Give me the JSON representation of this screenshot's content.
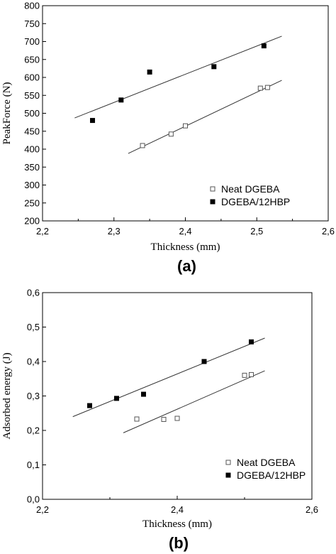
{
  "chart_data": [
    {
      "type": "scatter",
      "panel_label": "(a)",
      "xlabel": "Thickness (mm)",
      "ylabel": "PeakForce (N)",
      "xlim": [
        2.2,
        2.6
      ],
      "ylim": [
        200,
        800
      ],
      "x_ticks": [
        2.2,
        2.3,
        2.4,
        2.5,
        2.6
      ],
      "y_ticks": [
        200,
        250,
        300,
        350,
        400,
        450,
        500,
        550,
        600,
        650,
        700,
        750,
        800
      ],
      "x_tick_labels": [
        "2,2",
        "2,3",
        "2,4",
        "2,5",
        "2,6"
      ],
      "y_tick_labels": [
        "200",
        "250",
        "300",
        "350",
        "400",
        "450",
        "500",
        "550",
        "600",
        "650",
        "700",
        "750",
        "800"
      ],
      "grid": false,
      "legend_position": "bottom-right",
      "series": [
        {
          "name": "Neat DGEBA",
          "marker": "open-square",
          "x": [
            2.34,
            2.38,
            2.4,
            2.505,
            2.515
          ],
          "y": [
            410,
            442,
            465,
            570,
            572
          ],
          "fit": {
            "x": [
              2.32,
              2.535
            ],
            "y": [
              388,
              592
            ]
          }
        },
        {
          "name": "DGEBA/12HBP",
          "marker": "filled-square",
          "x": [
            2.27,
            2.31,
            2.35,
            2.44,
            2.51
          ],
          "y": [
            480,
            537,
            615,
            630,
            688
          ],
          "fit": {
            "x": [
              2.245,
              2.535
            ],
            "y": [
              487,
              715
            ]
          }
        }
      ]
    },
    {
      "type": "scatter",
      "panel_label": "(b)",
      "xlabel": "Thickness (mm)",
      "ylabel": "Adsorbed energy (J)",
      "xlim": [
        2.2,
        2.6
      ],
      "ylim": [
        0.0,
        0.6
      ],
      "x_ticks": [
        2.2,
        2.4,
        2.6
      ],
      "y_ticks": [
        0.0,
        0.1,
        0.2,
        0.3,
        0.4,
        0.5,
        0.6
      ],
      "x_tick_labels": [
        "2,2",
        "2,4",
        "2,6"
      ],
      "y_tick_labels": [
        "0,0",
        "0,1",
        "0,2",
        "0,3",
        "0,4",
        "0,5",
        "0,6"
      ],
      "grid": false,
      "legend_position": "bottom-right",
      "series": [
        {
          "name": "Neat DGEBA",
          "marker": "open-square",
          "x": [
            2.34,
            2.38,
            2.4,
            2.5,
            2.51
          ],
          "y": [
            0.233,
            0.232,
            0.235,
            0.36,
            0.362
          ],
          "fit": {
            "x": [
              2.32,
              2.53
            ],
            "y": [
              0.193,
              0.373
            ]
          }
        },
        {
          "name": "DGEBA/12HBP",
          "marker": "filled-square",
          "x": [
            2.27,
            2.31,
            2.35,
            2.44,
            2.51
          ],
          "y": [
            0.272,
            0.293,
            0.305,
            0.4,
            0.457
          ],
          "fit": {
            "x": [
              2.245,
              2.53
            ],
            "y": [
              0.24,
              0.468
            ]
          }
        }
      ]
    }
  ]
}
